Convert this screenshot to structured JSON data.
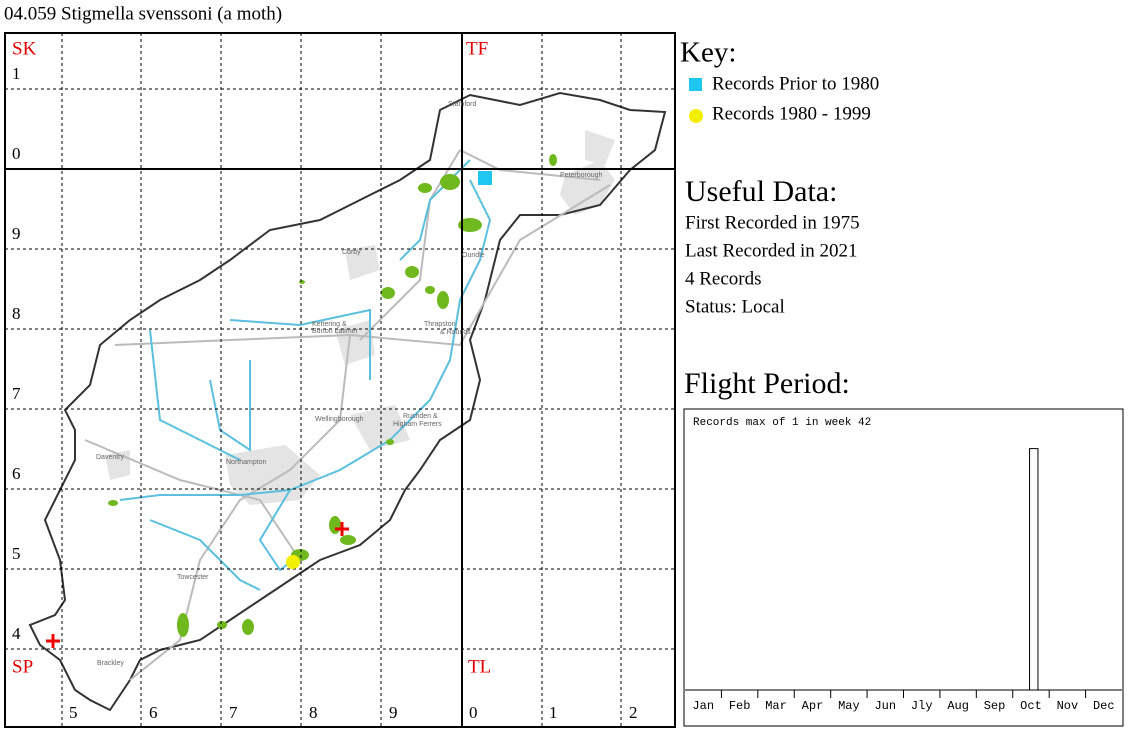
{
  "title": "04.059 Stigmella svenssoni (a moth)",
  "map": {
    "grid_squares": [
      "SK",
      "TF",
      "SP",
      "TL"
    ],
    "easting_labels": [
      "5",
      "6",
      "7",
      "8",
      "9",
      "0",
      "1",
      "2"
    ],
    "northing_labels": [
      "1",
      "0",
      "9",
      "8",
      "7",
      "6",
      "5",
      "4"
    ],
    "places": [
      "Stamford",
      "Peterborough",
      "Corby",
      "Oundle",
      "Kettering &",
      "Burton Latimer",
      "Thrapston",
      "& Raunds",
      "Wellingborough",
      "Rushden &",
      "Higham Ferrers",
      "Daventry",
      "Northampton",
      "Towcester",
      "Brackley"
    ]
  },
  "key": {
    "title": "Key:",
    "items": [
      {
        "label": "Records Prior to 1980",
        "color": "#1ec6f0",
        "shape": "square"
      },
      {
        "label": "Records 1980 - 1999",
        "color": "#f2f000",
        "shape": "circle"
      }
    ]
  },
  "useful_data": {
    "title": "Useful Data:",
    "lines": [
      "First Recorded in 1975",
      "Last Recorded in 2021",
      "4 Records",
      "Status: Local"
    ]
  },
  "chart_data": {
    "type": "bar",
    "title": "Flight Period:",
    "annotation": "Records max of 1 in week 42",
    "x": [
      42
    ],
    "values": [
      1
    ],
    "color": "#ffffff",
    "xlim": [
      0,
      52
    ],
    "ylim": [
      0,
      1.16
    ],
    "xticks": [
      {
        "value": 2.17,
        "label": "Jan"
      },
      {
        "value": 6.5,
        "label": "Feb"
      },
      {
        "value": 10.83,
        "label": "Mar"
      },
      {
        "value": 15.17,
        "label": "Apr"
      },
      {
        "value": 19.5,
        "label": "May"
      },
      {
        "value": 23.83,
        "label": "Jun"
      },
      {
        "value": 28.17,
        "label": "Jly"
      },
      {
        "value": 32.5,
        "label": "Aug"
      },
      {
        "value": 36.83,
        "label": "Sep"
      },
      {
        "value": 41.17,
        "label": "Oct"
      },
      {
        "value": 45.5,
        "label": "Nov"
      },
      {
        "value": 49.83,
        "label": "Dec"
      }
    ]
  }
}
